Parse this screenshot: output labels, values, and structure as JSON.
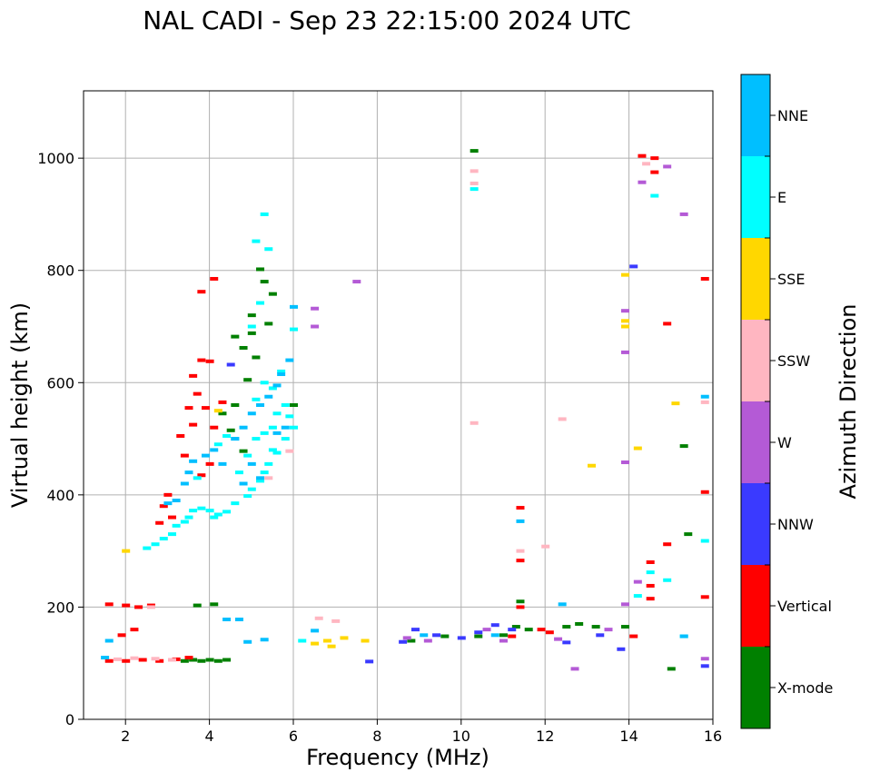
{
  "chart_data": {
    "type": "scatter",
    "title": "NAL CADI - Sep 23 22:15:00 2024 UTC",
    "xlabel": "Frequency (MHz)",
    "ylabel": "Virtual height (km)",
    "xlim": [
      1,
      16
    ],
    "ylim": [
      0,
      1120
    ],
    "xticks": [
      2,
      4,
      6,
      8,
      10,
      12,
      14,
      16
    ],
    "yticks": [
      0,
      200,
      400,
      600,
      800,
      1000
    ],
    "grid": true,
    "colorbar": {
      "label": "Azimuth Direction",
      "categories": [
        {
          "name": "X-mode",
          "color": "#008000"
        },
        {
          "name": "Vertical",
          "color": "#ff0000"
        },
        {
          "name": "NNW",
          "color": "#3a3aff"
        },
        {
          "name": "W",
          "color": "#b45ad6"
        },
        {
          "name": "SSW",
          "color": "#ffb6c1"
        },
        {
          "name": "SSE",
          "color": "#ffd700"
        },
        {
          "name": "E",
          "color": "#00ffff"
        },
        {
          "name": "NNE",
          "color": "#00bfff"
        }
      ]
    },
    "series": [
      {
        "name": "X-mode",
        "points": [
          [
            3.6,
            106
          ],
          [
            3.8,
            104
          ],
          [
            4.0,
            106
          ],
          [
            4.2,
            104
          ],
          [
            4.4,
            106
          ],
          [
            3.4,
            104
          ],
          [
            4.1,
            205
          ],
          [
            3.7,
            203
          ],
          [
            4.6,
            682
          ],
          [
            4.8,
            662
          ],
          [
            5.0,
            688
          ],
          [
            5.1,
            645
          ],
          [
            4.9,
            605
          ],
          [
            5.2,
            802
          ],
          [
            5.3,
            780
          ],
          [
            4.6,
            560
          ],
          [
            4.5,
            515
          ],
          [
            4.8,
            478
          ],
          [
            5.4,
            705
          ],
          [
            6.0,
            560
          ],
          [
            4.3,
            545
          ],
          [
            5.0,
            720
          ],
          [
            5.5,
            758
          ],
          [
            10.3,
            1013
          ],
          [
            10.4,
            148
          ],
          [
            11.0,
            150
          ],
          [
            11.3,
            165
          ],
          [
            11.6,
            160
          ],
          [
            12.5,
            165
          ],
          [
            12.8,
            170
          ],
          [
            13.2,
            165
          ],
          [
            11.4,
            210
          ],
          [
            13.9,
            165
          ],
          [
            15.0,
            90
          ],
          [
            15.3,
            487
          ],
          [
            15.4,
            330
          ],
          [
            8.8,
            140
          ],
          [
            9.6,
            148
          ]
        ]
      },
      {
        "name": "Vertical",
        "points": [
          [
            1.6,
            104
          ],
          [
            2.0,
            104
          ],
          [
            2.4,
            106
          ],
          [
            2.8,
            104
          ],
          [
            3.2,
            107
          ],
          [
            3.5,
            110
          ],
          [
            1.6,
            205
          ],
          [
            2.0,
            203
          ],
          [
            2.3,
            200
          ],
          [
            2.6,
            203
          ],
          [
            1.9,
            150
          ],
          [
            2.2,
            160
          ],
          [
            3.8,
            762
          ],
          [
            4.1,
            785
          ],
          [
            3.8,
            640
          ],
          [
            4.0,
            638
          ],
          [
            3.6,
            612
          ],
          [
            3.7,
            580
          ],
          [
            3.9,
            555
          ],
          [
            3.5,
            555
          ],
          [
            3.3,
            505
          ],
          [
            3.0,
            400
          ],
          [
            2.9,
            380
          ],
          [
            3.1,
            360
          ],
          [
            2.8,
            350
          ],
          [
            4.0,
            455
          ],
          [
            3.4,
            470
          ],
          [
            3.8,
            435
          ],
          [
            4.1,
            520
          ],
          [
            3.6,
            525
          ],
          [
            4.3,
            565
          ],
          [
            11.4,
            377
          ],
          [
            11.4,
            283
          ],
          [
            11.4,
            200
          ],
          [
            14.3,
            1004
          ],
          [
            14.6,
            1000
          ],
          [
            14.6,
            975
          ],
          [
            14.5,
            280
          ],
          [
            14.5,
            238
          ],
          [
            14.5,
            215
          ],
          [
            14.9,
            705
          ],
          [
            14.9,
            312
          ],
          [
            15.8,
            785
          ],
          [
            15.8,
            405
          ],
          [
            15.8,
            218
          ],
          [
            11.9,
            160
          ],
          [
            12.1,
            155
          ],
          [
            14.1,
            148
          ],
          [
            11.2,
            148
          ]
        ]
      },
      {
        "name": "NNW",
        "points": [
          [
            14.1,
            807
          ],
          [
            8.6,
            138
          ],
          [
            8.9,
            160
          ],
          [
            9.4,
            150
          ],
          [
            10.0,
            145
          ],
          [
            10.8,
            168
          ],
          [
            11.2,
            160
          ],
          [
            12.5,
            137
          ],
          [
            13.3,
            150
          ],
          [
            15.8,
            95
          ],
          [
            7.8,
            103
          ],
          [
            13.8,
            125
          ],
          [
            10.4,
            155
          ],
          [
            4.5,
            632
          ]
        ]
      },
      {
        "name": "W",
        "points": [
          [
            6.5,
            732
          ],
          [
            7.5,
            780
          ],
          [
            6.5,
            700
          ],
          [
            13.9,
            728
          ],
          [
            13.9,
            654
          ],
          [
            13.9,
            458
          ],
          [
            14.3,
            957
          ],
          [
            14.9,
            985
          ],
          [
            15.3,
            900
          ],
          [
            15.8,
            108
          ],
          [
            12.7,
            90
          ],
          [
            8.7,
            145
          ],
          [
            9.2,
            140
          ],
          [
            10.6,
            160
          ],
          [
            11.0,
            140
          ],
          [
            12.3,
            143
          ],
          [
            13.5,
            160
          ],
          [
            14.2,
            245
          ],
          [
            13.9,
            205
          ]
        ]
      },
      {
        "name": "SSW",
        "points": [
          [
            10.3,
            977
          ],
          [
            10.3,
            955
          ],
          [
            10.3,
            528
          ],
          [
            12.4,
            535
          ],
          [
            11.4,
            300
          ],
          [
            12.0,
            308
          ],
          [
            14.4,
            990
          ],
          [
            15.8,
            565
          ],
          [
            5.9,
            478
          ],
          [
            1.8,
            107
          ],
          [
            2.2,
            109
          ],
          [
            2.7,
            108
          ],
          [
            3.1,
            106
          ],
          [
            2.6,
            200
          ],
          [
            6.6,
            180
          ],
          [
            7.0,
            175
          ],
          [
            5.4,
            430
          ]
        ]
      },
      {
        "name": "SSE",
        "points": [
          [
            13.9,
            792
          ],
          [
            13.9,
            710
          ],
          [
            13.9,
            700
          ],
          [
            14.2,
            483
          ],
          [
            13.1,
            452
          ],
          [
            15.1,
            563
          ],
          [
            6.5,
            135
          ],
          [
            6.8,
            140
          ],
          [
            7.2,
            145
          ],
          [
            7.7,
            140
          ],
          [
            6.9,
            130
          ],
          [
            4.2,
            550
          ],
          [
            2.0,
            300
          ]
        ]
      },
      {
        "name": "E",
        "points": [
          [
            2.5,
            305
          ],
          [
            2.7,
            312
          ],
          [
            2.9,
            322
          ],
          [
            3.1,
            330
          ],
          [
            3.2,
            345
          ],
          [
            3.4,
            352
          ],
          [
            3.5,
            360
          ],
          [
            3.6,
            372
          ],
          [
            3.8,
            376
          ],
          [
            4.0,
            372
          ],
          [
            4.1,
            360
          ],
          [
            4.2,
            365
          ],
          [
            4.4,
            370
          ],
          [
            4.6,
            385
          ],
          [
            4.9,
            398
          ],
          [
            5.0,
            410
          ],
          [
            5.2,
            425
          ],
          [
            5.3,
            440
          ],
          [
            5.4,
            455
          ],
          [
            5.6,
            475
          ],
          [
            5.8,
            500
          ],
          [
            6.0,
            520
          ],
          [
            5.5,
            520
          ],
          [
            5.9,
            540
          ],
          [
            4.7,
            440
          ],
          [
            4.9,
            470
          ],
          [
            5.1,
            500
          ],
          [
            5.3,
            510
          ],
          [
            5.5,
            480
          ],
          [
            5.6,
            545
          ],
          [
            5.8,
            560
          ],
          [
            3.7,
            430
          ],
          [
            4.2,
            490
          ],
          [
            4.4,
            505
          ],
          [
            6.0,
            695
          ],
          [
            5.7,
            620
          ],
          [
            5.5,
            590
          ],
          [
            5.3,
            600
          ],
          [
            5.1,
            570
          ],
          [
            10.3,
            945
          ],
          [
            14.6,
            933
          ],
          [
            14.9,
            248
          ],
          [
            15.8,
            318
          ],
          [
            15.3,
            148
          ],
          [
            14.2,
            220
          ],
          [
            14.5,
            262
          ],
          [
            6.2,
            140
          ],
          [
            5.3,
            900
          ],
          [
            5.1,
            852
          ],
          [
            5.4,
            838
          ],
          [
            5.2,
            742
          ],
          [
            5.0,
            700
          ]
        ]
      },
      {
        "name": "NNE",
        "points": [
          [
            3.0,
            385
          ],
          [
            3.2,
            390
          ],
          [
            3.4,
            420
          ],
          [
            3.5,
            440
          ],
          [
            3.6,
            460
          ],
          [
            3.9,
            470
          ],
          [
            4.1,
            480
          ],
          [
            4.3,
            455
          ],
          [
            4.6,
            500
          ],
          [
            4.8,
            520
          ],
          [
            5.0,
            545
          ],
          [
            5.2,
            560
          ],
          [
            5.4,
            575
          ],
          [
            5.6,
            595
          ],
          [
            5.7,
            615
          ],
          [
            5.9,
            640
          ],
          [
            6.0,
            735
          ],
          [
            5.8,
            520
          ],
          [
            5.6,
            510
          ],
          [
            5.2,
            430
          ],
          [
            5.0,
            455
          ],
          [
            4.8,
            420
          ],
          [
            4.6,
            500
          ],
          [
            11.4,
            353
          ],
          [
            12.4,
            205
          ],
          [
            15.8,
            575
          ],
          [
            15.3,
            148
          ],
          [
            10.8,
            150
          ],
          [
            9.1,
            150
          ],
          [
            4.4,
            178
          ],
          [
            4.9,
            138
          ],
          [
            5.3,
            142
          ],
          [
            6.5,
            158
          ],
          [
            4.7,
            178
          ],
          [
            1.5,
            110
          ],
          [
            1.6,
            140
          ]
        ]
      }
    ]
  }
}
